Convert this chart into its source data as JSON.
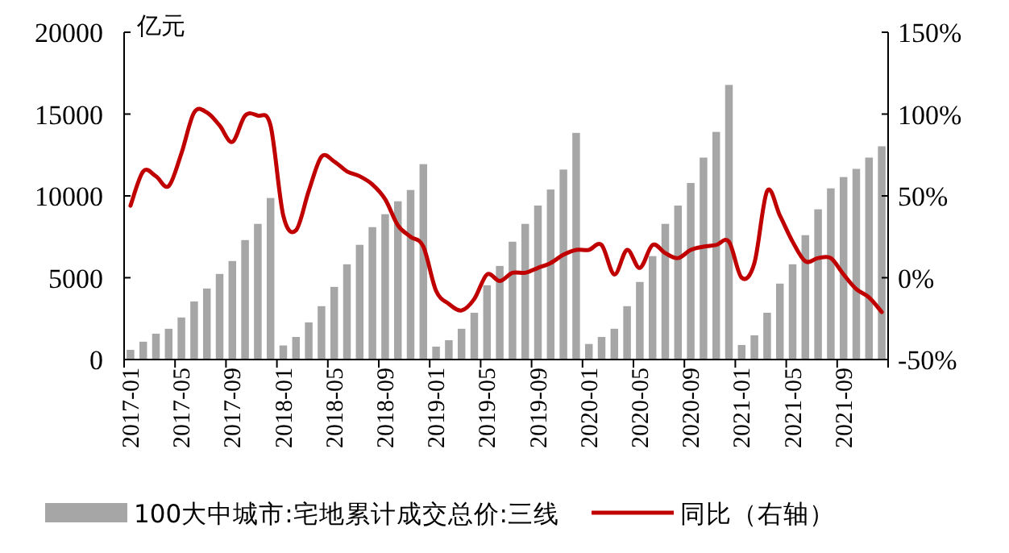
{
  "chart_data": {
    "type": "bar",
    "ylabel": "亿元",
    "categories": [
      "2017-01",
      null,
      null,
      null,
      "2017-05",
      null,
      null,
      null,
      "2017-09",
      null,
      null,
      null,
      "2018-01",
      null,
      null,
      null,
      "2018-05",
      null,
      null,
      null,
      "2018-09",
      null,
      null,
      null,
      "2019-01",
      null,
      null,
      null,
      "2019-05",
      null,
      null,
      null,
      "2019-09",
      null,
      null,
      null,
      "2020-01",
      null,
      null,
      null,
      "2020-05",
      null,
      null,
      null,
      "2020-09",
      null,
      null,
      null,
      "2021-01",
      null,
      null,
      null,
      "2021-05",
      null,
      null,
      null,
      "2021-09",
      null,
      null,
      null
    ],
    "series": [
      {
        "name": "100大中城市:宅地累计成交总价:三线",
        "color": "#a6a6a6",
        "values": [
          590,
          1090,
          1580,
          1880,
          2570,
          3550,
          4340,
          5230,
          6020,
          7300,
          8290,
          9870,
          860,
          1380,
          2270,
          3260,
          4440,
          5820,
          7010,
          8090,
          8880,
          9670,
          10360,
          11940,
          790,
          1180,
          1880,
          2860,
          4540,
          5720,
          7200,
          8290,
          9410,
          10390,
          11610,
          13850,
          950,
          1380,
          1880,
          3260,
          4740,
          6320,
          8290,
          9410,
          10790,
          12340,
          13910,
          16780,
          890,
          1480,
          2860,
          4640,
          5820,
          7600,
          9180,
          10460,
          11150,
          11650,
          12340,
          13030
        ]
      },
      {
        "name": "同比（右轴）",
        "type": "line",
        "axis": "y2",
        "color": "#c00000",
        "values": [
          44,
          65,
          62,
          56,
          76,
          101,
          101,
          93,
          83,
          99,
          99,
          93,
          38,
          29,
          53,
          74,
          71,
          65,
          62,
          57,
          48,
          32,
          25,
          19,
          -8,
          -16,
          -20,
          -13,
          2,
          -2,
          3,
          3,
          6,
          9,
          14,
          17,
          17,
          20,
          2,
          17,
          6,
          20,
          15,
          12,
          17,
          19,
          20,
          22,
          0,
          9,
          53,
          38,
          22,
          10,
          12,
          12,
          2,
          -7,
          -12,
          -21
        ]
      }
    ],
    "ylim": [
      0,
      20000
    ],
    "yticks": [
      0,
      5000,
      10000,
      15000,
      20000
    ],
    "y2lim": [
      -50,
      150
    ],
    "y2ticks": [
      {
        "value": -50,
        "label": "-50%"
      },
      {
        "value": 0,
        "label": "0%"
      },
      {
        "value": 50,
        "label": "50%"
      },
      {
        "value": 100,
        "label": "100%"
      },
      {
        "value": 150,
        "label": "150%"
      }
    ],
    "legend": "bottom",
    "grid": false
  }
}
